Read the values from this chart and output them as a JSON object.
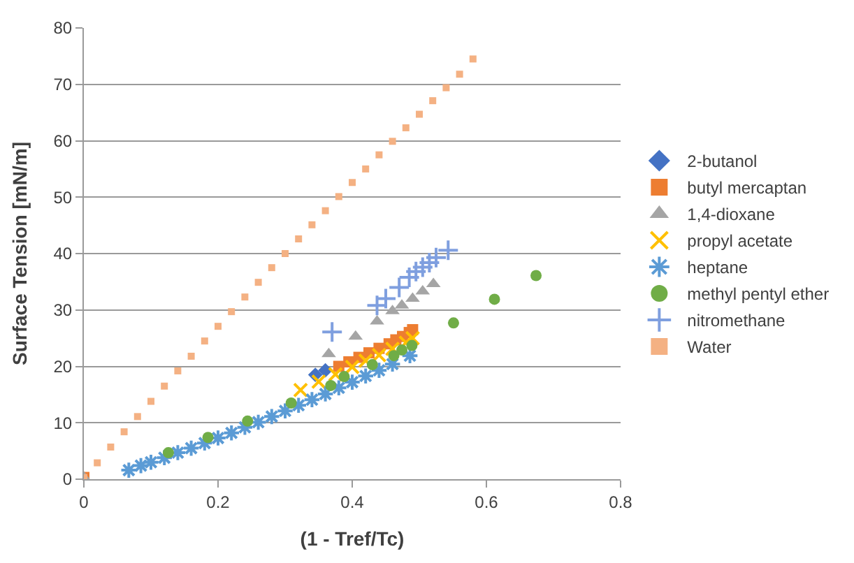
{
  "chart_data": {
    "type": "scatter",
    "xlabel": "(1 - Tref/Tc)",
    "ylabel": "Surface Tension [mN/m]",
    "xlim": [
      0,
      0.8
    ],
    "xticks": [
      0,
      0.2,
      0.4,
      0.6,
      0.8
    ],
    "ylim": [
      0,
      80
    ],
    "yticks": [
      0,
      10,
      20,
      30,
      40,
      50,
      60,
      70,
      80
    ],
    "grid": "y",
    "legend": "right",
    "series": [
      {
        "name": "2-butanol",
        "color": "#4472c4",
        "marker": "diamond",
        "x": [
          0.345,
          0.36
        ],
        "values": [
          18.5,
          19.3
        ]
      },
      {
        "name": "butyl mercaptan",
        "color": "#ed7d31",
        "marker": "square",
        "x": [
          0,
          0.38,
          0.395,
          0.41,
          0.425,
          0.44,
          0.455,
          0.465,
          0.475,
          0.485,
          0.49
        ],
        "values": [
          0.3,
          20.0,
          20.8,
          21.6,
          22.4,
          23.2,
          24.0,
          24.7,
          25.3,
          26.0,
          26.5
        ]
      },
      {
        "name": "1,4-dioxane",
        "color": "#a5a5a5",
        "marker": "triangle",
        "x": [
          0,
          0.365,
          0.405,
          0.437,
          0.46,
          0.474,
          0.49,
          0.505,
          0.521
        ],
        "values": [
          0.3,
          22.2,
          25.3,
          28.0,
          29.8,
          30.8,
          32.0,
          33.3,
          34.6
        ]
      },
      {
        "name": "propyl acetate",
        "color": "#ffc000",
        "marker": "x",
        "x": [
          0.323,
          0.35,
          0.375,
          0.4,
          0.42,
          0.44,
          0.46,
          0.48,
          0.49
        ],
        "values": [
          15.8,
          17.3,
          18.6,
          19.9,
          21.0,
          22.0,
          23.1,
          24.2,
          25.0
        ]
      },
      {
        "name": "heptane",
        "color": "#5b9bd5",
        "marker": "cross",
        "x": [
          0.067,
          0.085,
          0.1,
          0.12,
          0.14,
          0.16,
          0.18,
          0.2,
          0.22,
          0.24,
          0.26,
          0.28,
          0.3,
          0.32,
          0.34,
          0.36,
          0.38,
          0.4,
          0.42,
          0.44,
          0.46,
          0.486
        ],
        "values": [
          1.6,
          2.4,
          3.0,
          3.8,
          4.7,
          5.5,
          6.4,
          7.3,
          8.2,
          9.2,
          10.1,
          11.1,
          12.1,
          13.1,
          14.1,
          15.1,
          16.2,
          17.2,
          18.3,
          19.3,
          20.4,
          21.9
        ]
      },
      {
        "name": "methyl pentyl ether",
        "color": "#70ad47",
        "marker": "circle",
        "x": [
          0.126,
          0.185,
          0.244,
          0.309,
          0.368,
          0.388,
          0.43,
          0.462,
          0.474,
          0.489,
          0.551,
          0.612,
          0.674
        ],
        "values": [
          4.7,
          7.4,
          10.3,
          13.5,
          16.6,
          18.2,
          20.3,
          21.9,
          22.9,
          23.7,
          27.7,
          31.9,
          36.1
        ]
      },
      {
        "name": "nitromethane",
        "color": "#7f9fdf",
        "marker": "plus",
        "x": [
          0.37,
          0.437,
          0.45,
          0.47,
          0.485,
          0.495,
          0.505,
          0.515,
          0.525,
          0.543
        ],
        "values": [
          26.1,
          30.8,
          32.0,
          34.0,
          35.8,
          36.8,
          37.6,
          38.4,
          39.3,
          40.6
        ]
      },
      {
        "name": "Water",
        "color": "#f4b183",
        "marker": "square",
        "x": [
          0,
          0.02,
          0.04,
          0.06,
          0.08,
          0.1,
          0.12,
          0.14,
          0.16,
          0.18,
          0.2,
          0.22,
          0.24,
          0.26,
          0.28,
          0.3,
          0.32,
          0.34,
          0.36,
          0.38,
          0.4,
          0.42,
          0.44,
          0.46,
          0.48,
          0.5,
          0.52,
          0.54,
          0.56,
          0.58
        ],
        "values": [
          0.3,
          2.9,
          5.7,
          8.4,
          11.1,
          13.8,
          16.5,
          19.2,
          21.8,
          24.5,
          27.1,
          29.7,
          32.3,
          34.9,
          37.5,
          40.0,
          42.6,
          45.1,
          47.6,
          50.1,
          52.6,
          55.0,
          57.5,
          59.9,
          62.3,
          64.7,
          67.1,
          69.4,
          71.8,
          74.5
        ]
      }
    ]
  }
}
